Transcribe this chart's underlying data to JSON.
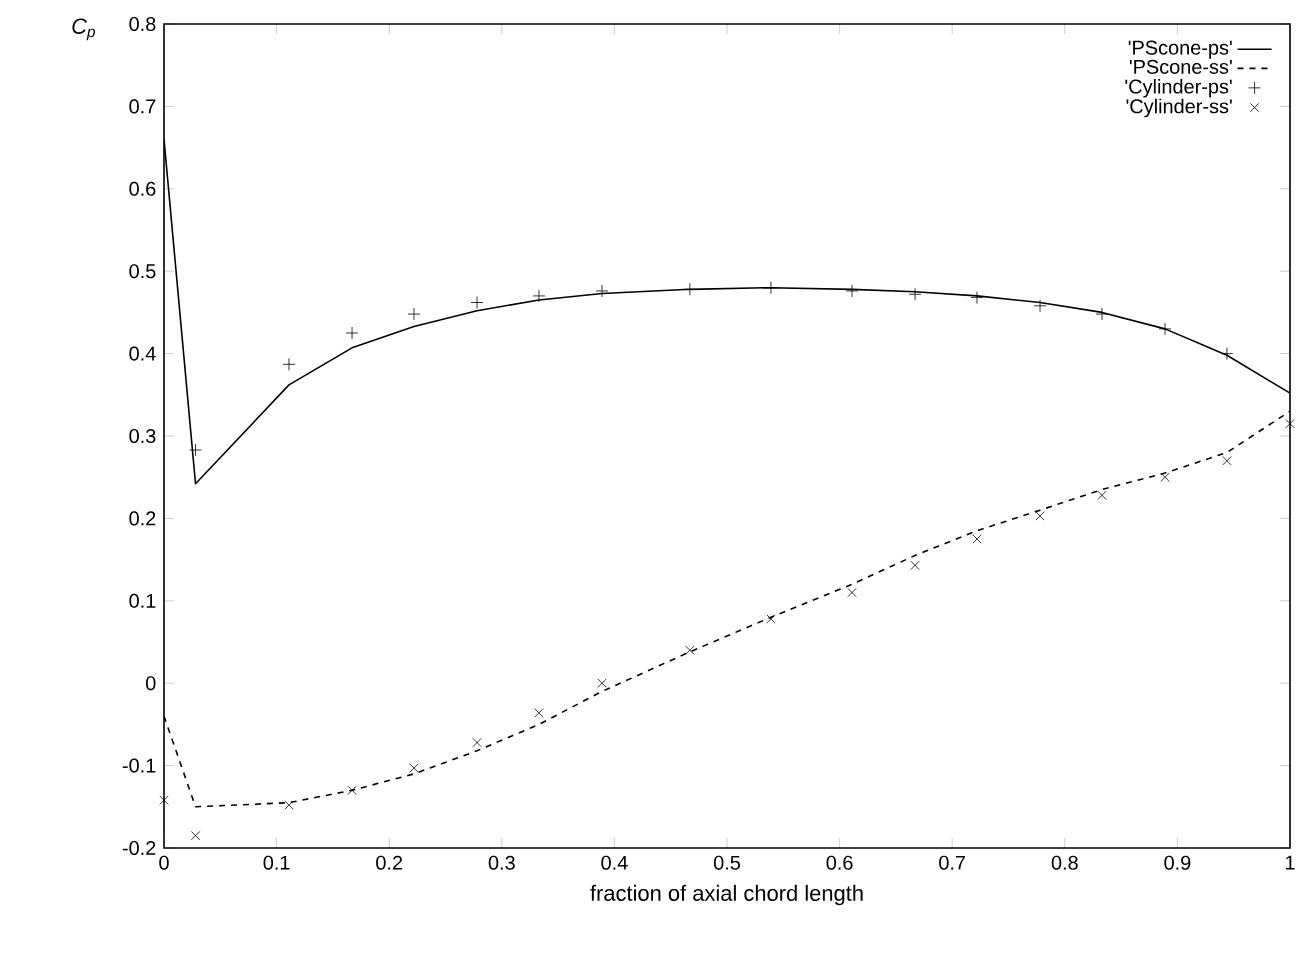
{
  "chart_data": {
    "type": "line",
    "xlabel": "fraction of axial chord length",
    "ylabel": "C$_{p}$",
    "xlim": [
      0,
      1
    ],
    "ylim": [
      -0.2,
      0.8
    ],
    "xticks": [
      0,
      0.1,
      0.2,
      0.3,
      0.4,
      0.5,
      0.6,
      0.7,
      0.8,
      0.9,
      1
    ],
    "yticks": [
      -0.2,
      -0.1,
      0,
      0.1,
      0.2,
      0.3,
      0.4,
      0.5,
      0.6,
      0.7,
      0.8
    ],
    "legend": "top right",
    "grid": false,
    "series": [
      {
        "name": "'PScone-ps'",
        "line_style": "solid",
        "marker": "none",
        "color": "#000000",
        "x": [
          0,
          0.028,
          0.111,
          0.167,
          0.222,
          0.278,
          0.333,
          0.389,
          0.467,
          0.539,
          0.611,
          0.667,
          0.722,
          0.778,
          0.833,
          0.889,
          0.944,
          1.0
        ],
        "values": [
          0.66,
          0.242,
          0.362,
          0.407,
          0.433,
          0.452,
          0.465,
          0.473,
          0.478,
          0.48,
          0.478,
          0.475,
          0.47,
          0.462,
          0.45,
          0.43,
          0.398,
          0.352
        ]
      },
      {
        "name": "'PScone-ss'",
        "line_style": "dashed",
        "marker": "none",
        "color": "#000000",
        "x": [
          0,
          0.028,
          0.111,
          0.167,
          0.222,
          0.278,
          0.333,
          0.389,
          0.467,
          0.539,
          0.611,
          0.667,
          0.722,
          0.778,
          0.833,
          0.889,
          0.944,
          1.0
        ],
        "values": [
          -0.04,
          -0.15,
          -0.145,
          -0.13,
          -0.11,
          -0.082,
          -0.05,
          -0.01,
          0.038,
          0.08,
          0.12,
          0.155,
          0.185,
          0.21,
          0.235,
          0.255,
          0.28,
          0.33
        ]
      },
      {
        "name": "'Cylinder-ps'",
        "type": "scatter",
        "marker": "plus",
        "color": "#000000",
        "x": [
          0.028,
          0.111,
          0.167,
          0.222,
          0.278,
          0.333,
          0.389,
          0.467,
          0.539,
          0.611,
          0.667,
          0.722,
          0.778,
          0.833,
          0.889,
          0.944
        ],
        "values": [
          0.283,
          0.387,
          0.425,
          0.448,
          0.462,
          0.47,
          0.476,
          0.478,
          0.48,
          0.476,
          0.472,
          0.468,
          0.458,
          0.448,
          0.43,
          0.4
        ]
      },
      {
        "name": "'Cylinder-ss'",
        "type": "scatter",
        "marker": "cross",
        "color": "#000000",
        "x": [
          0,
          0.028,
          0.111,
          0.167,
          0.222,
          0.278,
          0.333,
          0.389,
          0.467,
          0.539,
          0.611,
          0.667,
          0.722,
          0.778,
          0.833,
          0.889,
          0.944,
          1.0
        ],
        "values": [
          -0.142,
          -0.185,
          -0.148,
          -0.13,
          -0.103,
          -0.072,
          -0.036,
          0.0,
          0.04,
          0.078,
          0.11,
          0.143,
          0.175,
          0.203,
          0.228,
          0.25,
          0.27,
          0.315
        ]
      }
    ]
  }
}
